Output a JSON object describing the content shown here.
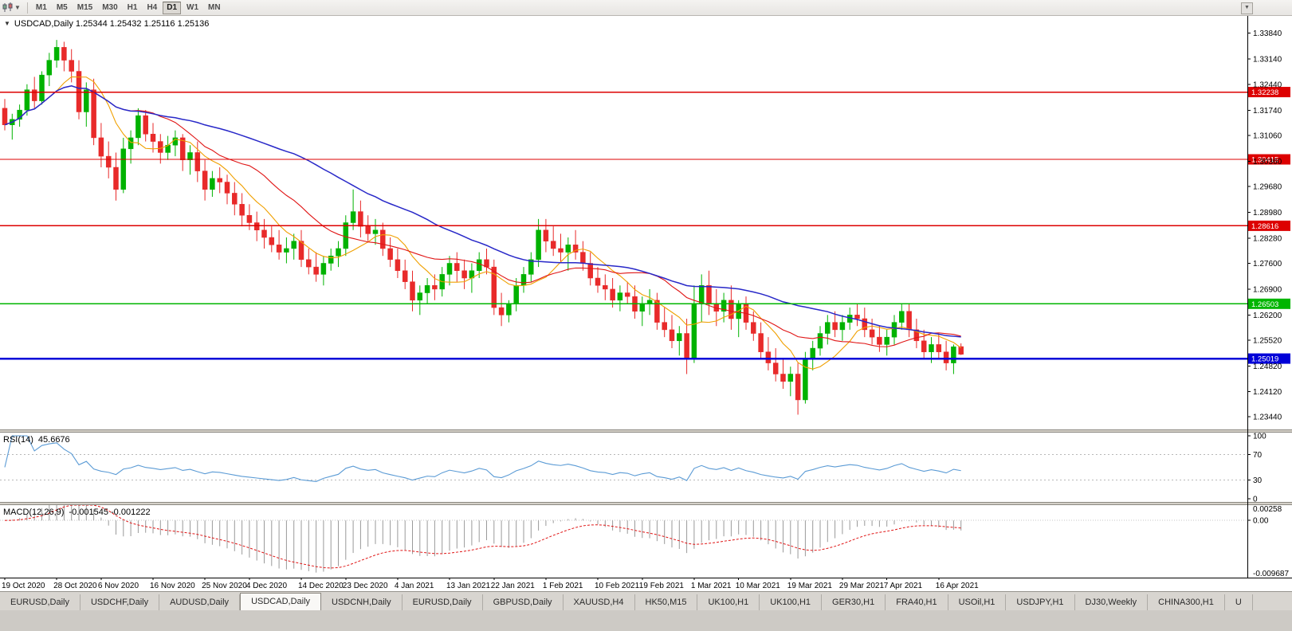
{
  "toolbar": {
    "timeframes": [
      {
        "label": "M1",
        "active": false
      },
      {
        "label": "M5",
        "active": false
      },
      {
        "label": "M15",
        "active": false
      },
      {
        "label": "M30",
        "active": false
      },
      {
        "label": "H1",
        "active": false
      },
      {
        "label": "H4",
        "active": false
      },
      {
        "label": "D1",
        "active": true
      },
      {
        "label": "W1",
        "active": false
      },
      {
        "label": "MN",
        "active": false
      }
    ]
  },
  "chart_header": {
    "collapse_icon": "▼",
    "title": "USDCAD,Daily 1.25344 1.25432 1.25116 1.25136"
  },
  "chart_data": {
    "type": "candlestick",
    "symbol": "USDCAD",
    "period": "Daily",
    "ohlc_display": {
      "open": "1.25344",
      "high": "1.25432",
      "low": "1.25116",
      "close": "1.25136"
    },
    "price_domain": [
      1.231,
      1.343
    ],
    "price_axis_ticks": [
      "1.33840",
      "1.33140",
      "1.32440",
      "1.31740",
      "1.31060",
      "1.30360",
      "1.29680",
      "1.28980",
      "1.28280",
      "1.27600",
      "1.26900",
      "1.26200",
      "1.25520",
      "1.24820",
      "1.24120",
      "1.23440"
    ],
    "date_axis_ticks": [
      "19 Oct 2020",
      "28 Oct 2020",
      "6 Nov 2020",
      "16 Nov 2020",
      "25 Nov 2020",
      "4 Dec 2020",
      "14 Dec 2020",
      "23 Dec 2020",
      "4 Jan 2021",
      "13 Jan 2021",
      "22 Jan 2021",
      "1 Feb 2021",
      "10 Feb 2021",
      "19 Feb 2021",
      "1 Mar 2021",
      "10 Mar 2021",
      "19 Mar 2021",
      "29 Mar 2021",
      "7 Apr 2021",
      "16 Apr 2021"
    ],
    "horizontal_levels": [
      {
        "price": 1.32238,
        "label": "1.32238",
        "color": "#dd0000",
        "width": 1.4
      },
      {
        "price": 1.30415,
        "label": "1.30415",
        "color": "#dd0000",
        "width": 1.4
      },
      {
        "price": 1.28616,
        "label": "1.28616",
        "color": "#dd0000",
        "width": 1.4
      },
      {
        "price": 1.26503,
        "label": "1.26503",
        "color": "#00b500",
        "width": 1.8
      },
      {
        "price": 1.25019,
        "label": "1.25019",
        "color": "#0000d8",
        "width": 2.4
      }
    ],
    "colors": {
      "up": "#00b200",
      "down": "#e82a2a",
      "ma_fast": "#f0a000",
      "ma_mid": "#e01515",
      "ma_slow": "#2828c8"
    },
    "candles": [
      [
        1.318,
        1.3205,
        1.312,
        1.3135
      ],
      [
        1.3135,
        1.3165,
        1.3095,
        1.315
      ],
      [
        1.315,
        1.319,
        1.313,
        1.3175
      ],
      [
        1.3175,
        1.3245,
        1.316,
        1.323
      ],
      [
        1.323,
        1.3265,
        1.318,
        1.32
      ],
      [
        1.32,
        1.328,
        1.319,
        1.327
      ],
      [
        1.327,
        1.333,
        1.324,
        1.331
      ],
      [
        1.331,
        1.3365,
        1.329,
        1.3345
      ],
      [
        1.3345,
        1.336,
        1.328,
        1.331
      ],
      [
        1.331,
        1.334,
        1.325,
        1.328
      ],
      [
        1.328,
        1.331,
        1.315,
        1.317
      ],
      [
        1.317,
        1.325,
        1.313,
        1.323
      ],
      [
        1.323,
        1.326,
        1.308,
        1.31
      ],
      [
        1.31,
        1.314,
        1.302,
        1.305
      ],
      [
        1.305,
        1.309,
        1.299,
        1.302
      ],
      [
        1.302,
        1.306,
        1.293,
        1.296
      ],
      [
        1.296,
        1.31,
        1.295,
        1.307
      ],
      [
        1.307,
        1.312,
        1.303,
        1.31
      ],
      [
        1.31,
        1.318,
        1.308,
        1.316
      ],
      [
        1.316,
        1.3175,
        1.309,
        1.311
      ],
      [
        1.311,
        1.314,
        1.306,
        1.309
      ],
      [
        1.309,
        1.311,
        1.303,
        1.306
      ],
      [
        1.306,
        1.3105,
        1.304,
        1.308
      ],
      [
        1.308,
        1.312,
        1.305,
        1.31
      ],
      [
        1.31,
        1.311,
        1.301,
        1.304
      ],
      [
        1.304,
        1.308,
        1.3,
        1.306
      ],
      [
        1.306,
        1.309,
        1.298,
        1.301
      ],
      [
        1.301,
        1.304,
        1.293,
        1.296
      ],
      [
        1.296,
        1.301,
        1.294,
        1.299
      ],
      [
        1.299,
        1.302,
        1.295,
        1.298
      ],
      [
        1.298,
        1.3,
        1.292,
        1.295
      ],
      [
        1.295,
        1.298,
        1.289,
        1.292
      ],
      [
        1.292,
        1.295,
        1.286,
        1.289
      ],
      [
        1.289,
        1.292,
        1.285,
        1.287
      ],
      [
        1.287,
        1.29,
        1.282,
        1.285
      ],
      [
        1.285,
        1.288,
        1.28,
        1.283
      ],
      [
        1.283,
        1.286,
        1.279,
        1.281
      ],
      [
        1.281,
        1.285,
        1.277,
        1.279
      ],
      [
        1.279,
        1.283,
        1.276,
        1.28
      ],
      [
        1.28,
        1.284,
        1.277,
        1.282
      ],
      [
        1.282,
        1.285,
        1.275,
        1.277
      ],
      [
        1.277,
        1.28,
        1.273,
        1.275
      ],
      [
        1.275,
        1.279,
        1.271,
        1.273
      ],
      [
        1.273,
        1.278,
        1.27,
        1.276
      ],
      [
        1.276,
        1.28,
        1.274,
        1.278
      ],
      [
        1.278,
        1.282,
        1.275,
        1.28
      ],
      [
        1.28,
        1.289,
        1.278,
        1.287
      ],
      [
        1.287,
        1.296,
        1.285,
        1.29
      ],
      [
        1.29,
        1.293,
        1.283,
        1.286
      ],
      [
        1.286,
        1.289,
        1.282,
        1.284
      ],
      [
        1.284,
        1.288,
        1.281,
        1.285
      ],
      [
        1.285,
        1.287,
        1.278,
        1.28
      ],
      [
        1.28,
        1.283,
        1.275,
        1.277
      ],
      [
        1.277,
        1.28,
        1.272,
        1.274
      ],
      [
        1.274,
        1.277,
        1.269,
        1.271
      ],
      [
        1.271,
        1.274,
        1.263,
        1.266
      ],
      [
        1.266,
        1.27,
        1.262,
        1.268
      ],
      [
        1.268,
        1.272,
        1.265,
        1.27
      ],
      [
        1.27,
        1.273,
        1.266,
        1.269
      ],
      [
        1.269,
        1.275,
        1.267,
        1.273
      ],
      [
        1.273,
        1.278,
        1.27,
        1.276
      ],
      [
        1.276,
        1.279,
        1.271,
        1.274
      ],
      [
        1.274,
        1.277,
        1.269,
        1.272
      ],
      [
        1.272,
        1.276,
        1.268,
        1.274
      ],
      [
        1.274,
        1.279,
        1.272,
        1.277
      ],
      [
        1.277,
        1.28,
        1.273,
        1.275
      ],
      [
        1.275,
        1.277,
        1.262,
        1.264
      ],
      [
        1.264,
        1.268,
        1.259,
        1.262
      ],
      [
        1.262,
        1.266,
        1.26,
        1.265
      ],
      [
        1.265,
        1.272,
        1.263,
        1.27
      ],
      [
        1.27,
        1.275,
        1.268,
        1.273
      ],
      [
        1.273,
        1.279,
        1.271,
        1.277
      ],
      [
        1.277,
        1.288,
        1.275,
        1.285
      ],
      [
        1.285,
        1.288,
        1.279,
        1.282
      ],
      [
        1.282,
        1.286,
        1.278,
        1.28
      ],
      [
        1.28,
        1.284,
        1.276,
        1.279
      ],
      [
        1.279,
        1.283,
        1.274,
        1.281
      ],
      [
        1.281,
        1.285,
        1.277,
        1.279
      ],
      [
        1.279,
        1.282,
        1.274,
        1.276
      ],
      [
        1.276,
        1.279,
        1.27,
        1.272
      ],
      [
        1.272,
        1.275,
        1.268,
        1.27
      ],
      [
        1.27,
        1.273,
        1.266,
        1.269
      ],
      [
        1.269,
        1.272,
        1.264,
        1.266
      ],
      [
        1.266,
        1.27,
        1.263,
        1.268
      ],
      [
        1.268,
        1.271,
        1.265,
        1.267
      ],
      [
        1.267,
        1.27,
        1.261,
        1.263
      ],
      [
        1.263,
        1.267,
        1.259,
        1.265
      ],
      [
        1.265,
        1.269,
        1.262,
        1.266
      ],
      [
        1.266,
        1.268,
        1.258,
        1.26
      ],
      [
        1.26,
        1.264,
        1.256,
        1.258
      ],
      [
        1.258,
        1.262,
        1.253,
        1.255
      ],
      [
        1.255,
        1.259,
        1.251,
        1.257
      ],
      [
        1.257,
        1.261,
        1.246,
        1.25
      ],
      [
        1.25,
        1.27,
        1.249,
        1.265
      ],
      [
        1.265,
        1.273,
        1.26,
        1.27
      ],
      [
        1.27,
        1.274,
        1.262,
        1.265
      ],
      [
        1.265,
        1.269,
        1.259,
        1.263
      ],
      [
        1.263,
        1.268,
        1.26,
        1.266
      ],
      [
        1.266,
        1.27,
        1.258,
        1.261
      ],
      [
        1.261,
        1.266,
        1.256,
        1.265
      ],
      [
        1.265,
        1.267,
        1.258,
        1.26
      ],
      [
        1.26,
        1.263,
        1.255,
        1.257
      ],
      [
        1.257,
        1.26,
        1.25,
        1.252
      ],
      [
        1.252,
        1.256,
        1.247,
        1.249
      ],
      [
        1.249,
        1.253,
        1.244,
        1.246
      ],
      [
        1.246,
        1.25,
        1.242,
        1.244
      ],
      [
        1.244,
        1.248,
        1.24,
        1.246
      ],
      [
        1.246,
        1.249,
        1.235,
        1.239
      ],
      [
        1.239,
        1.252,
        1.238,
        1.25
      ],
      [
        1.25,
        1.255,
        1.247,
        1.253
      ],
      [
        1.253,
        1.259,
        1.251,
        1.257
      ],
      [
        1.257,
        1.262,
        1.254,
        1.26
      ],
      [
        1.26,
        1.263,
        1.256,
        1.258
      ],
      [
        1.258,
        1.262,
        1.255,
        1.26
      ],
      [
        1.26,
        1.264,
        1.258,
        1.262
      ],
      [
        1.262,
        1.265,
        1.259,
        1.261
      ],
      [
        1.261,
        1.264,
        1.256,
        1.258
      ],
      [
        1.258,
        1.261,
        1.254,
        1.256
      ],
      [
        1.256,
        1.259,
        1.252,
        1.254
      ],
      [
        1.254,
        1.258,
        1.251,
        1.256
      ],
      [
        1.256,
        1.262,
        1.254,
        1.26
      ],
      [
        1.26,
        1.265,
        1.258,
        1.263
      ],
      [
        1.263,
        1.265,
        1.256,
        1.258
      ],
      [
        1.258,
        1.261,
        1.253,
        1.255
      ],
      [
        1.255,
        1.258,
        1.25,
        1.252
      ],
      [
        1.252,
        1.256,
        1.249,
        1.254
      ],
      [
        1.254,
        1.257,
        1.25,
        1.252
      ],
      [
        1.252,
        1.255,
        1.247,
        1.249
      ],
      [
        1.249,
        1.254,
        1.246,
        1.2534
      ],
      [
        1.25344,
        1.25432,
        1.25116,
        1.25136
      ]
    ]
  },
  "rsi": {
    "name": "RSI(14)",
    "value": "45.6676",
    "axis_ticks": [
      "100",
      "70",
      "30",
      "0"
    ],
    "guide_levels": [
      70,
      30
    ],
    "line_color": "#5b9bd5",
    "range": [
      0,
      100
    ]
  },
  "macd": {
    "name": "MACD(12,26,9)",
    "values": "-0.001545 -0.001222",
    "axis_top": "0.00258",
    "axis_zero": "0.00",
    "axis_bottom": "-0.009687",
    "range": [
      -0.0097,
      0.0026
    ],
    "histogram_color": "#9a9a9a",
    "signal_color": "#e01515"
  },
  "tabs": {
    "items": [
      {
        "label": "EURUSD,Daily",
        "active": false
      },
      {
        "label": "USDCHF,Daily",
        "active": false
      },
      {
        "label": "AUDUSD,Daily",
        "active": false
      },
      {
        "label": "USDCAD,Daily",
        "active": true
      },
      {
        "label": "USDCNH,Daily",
        "active": false
      },
      {
        "label": "EURUSD,Daily",
        "active": false
      },
      {
        "label": "GBPUSD,Daily",
        "active": false
      },
      {
        "label": "XAUUSD,H4",
        "active": false
      },
      {
        "label": "HK50,M15",
        "active": false
      },
      {
        "label": "UK100,H1",
        "active": false
      },
      {
        "label": "UK100,H1",
        "active": false
      },
      {
        "label": "GER30,H1",
        "active": false
      },
      {
        "label": "FRA40,H1",
        "active": false
      },
      {
        "label": "USOil,H1",
        "active": false
      },
      {
        "label": "USDJPY,H1",
        "active": false
      },
      {
        "label": "DJ30,Weekly",
        "active": false
      },
      {
        "label": "CHINA300,H1",
        "active": false
      },
      {
        "label": "U",
        "active": false
      }
    ]
  }
}
